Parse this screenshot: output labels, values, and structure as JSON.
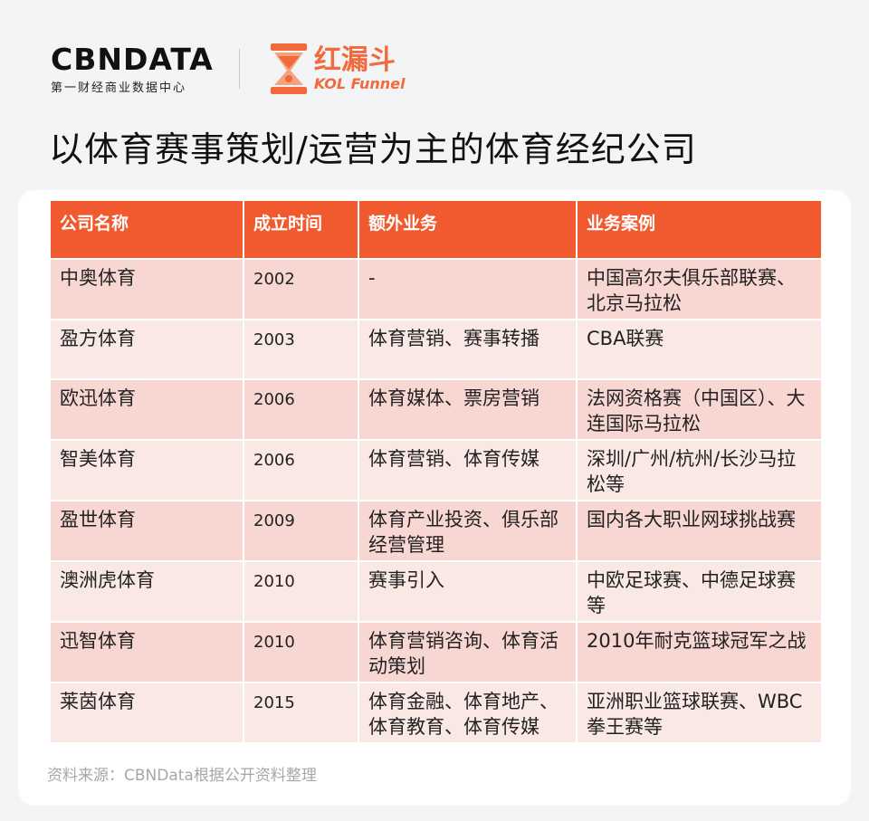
{
  "header": {
    "brand_wordmark": "CBNDATA",
    "brand_subtitle": "第一财经商业数据中心",
    "partner_name_cn": "红漏斗",
    "partner_name_en": "KOL Funnel"
  },
  "title": "以体育赛事策划/运营为主的体育经纪公司",
  "table": {
    "columns": [
      "公司名称",
      "成立时间",
      "额外业务",
      "业务案例"
    ],
    "rows": [
      {
        "company": "中奥体育",
        "year": "2002",
        "extra": "-",
        "cases": "中国高尔夫俱乐部联赛、北京马拉松"
      },
      {
        "company": "盈方体育",
        "year": "2003",
        "extra": "体育营销、赛事转播",
        "cases": "CBA联赛"
      },
      {
        "company": "欧迅体育",
        "year": "2006",
        "extra": "体育媒体、票房营销",
        "cases": "法网资格赛（中国区）、大连国际马拉松"
      },
      {
        "company": "智美体育",
        "year": "2006",
        "extra": "体育营销、体育传媒",
        "cases": "深圳/广州/杭州/长沙马拉松等"
      },
      {
        "company": "盈世体育",
        "year": "2009",
        "extra": "体育产业投资、俱乐部经营管理",
        "cases": "国内各大职业网球挑战赛"
      },
      {
        "company": "澳洲虎体育",
        "year": "2010",
        "extra": "赛事引入",
        "cases": "中欧足球赛、中德足球赛等"
      },
      {
        "company": "迅智体育",
        "year": "2010",
        "extra": "体育营销咨询、体育活动策划",
        "cases": "2010年耐克篮球冠军之战"
      },
      {
        "company": "莱茵体育",
        "year": "2015",
        "extra": "体育金融、体育地产、体育教育、体育传媒",
        "cases": "亚洲职业篮球联赛、WBC拳王赛等"
      }
    ]
  },
  "source": "资料来源：CBNData根据公开资料整理",
  "colors": {
    "accent": "#f05a2e",
    "row_odd": "#f8d7d3",
    "row_even": "#fae8e5",
    "background": "#f2f4f6"
  }
}
